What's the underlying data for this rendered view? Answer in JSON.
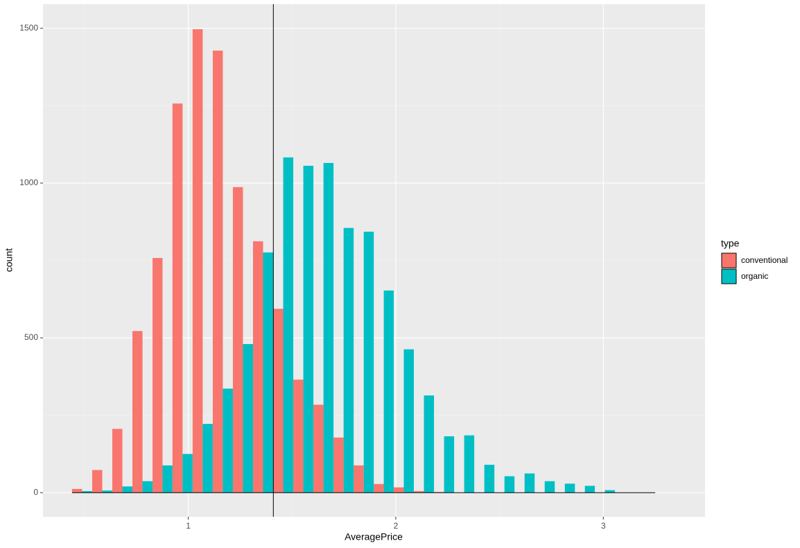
{
  "chart_data": {
    "type": "histogram",
    "x_label": "AveragePrice",
    "y_label": "count",
    "legend_title": "type",
    "legend_position": "right",
    "bins": [
      0.44,
      0.537,
      0.634,
      0.731,
      0.828,
      0.924,
      1.021,
      1.118,
      1.215,
      1.312,
      1.409,
      1.506,
      1.603,
      1.7,
      1.797,
      1.894,
      1.99,
      2.087,
      2.184,
      2.281,
      2.378,
      2.475,
      2.572,
      2.669,
      2.766,
      2.863,
      2.959,
      3.056,
      3.153,
      3.25
    ],
    "series": [
      {
        "name": "conventional",
        "color": "#F8766D",
        "values": [
          12,
          73,
          206,
          522,
          758,
          1257,
          1497,
          1428,
          987,
          812,
          594,
          365,
          284,
          178,
          88,
          28,
          17,
          5,
          2,
          0,
          0,
          0,
          0,
          0,
          0,
          0,
          0,
          0,
          0
        ]
      },
      {
        "name": "organic",
        "color": "#00BFC4",
        "values": [
          5,
          7,
          20,
          37,
          88,
          125,
          222,
          336,
          480,
          776,
          1083,
          1056,
          1065,
          855,
          843,
          653,
          463,
          314,
          182,
          185,
          90,
          53,
          62,
          37,
          29,
          22,
          8,
          0,
          0
        ]
      }
    ],
    "vline": 1.41,
    "xlim": [
      0.3,
      3.49
    ],
    "xticks": [
      1,
      2,
      3
    ],
    "ylim": [
      -78,
      1578
    ],
    "yticks": [
      0,
      500,
      1000,
      1500
    ],
    "grid": true
  }
}
